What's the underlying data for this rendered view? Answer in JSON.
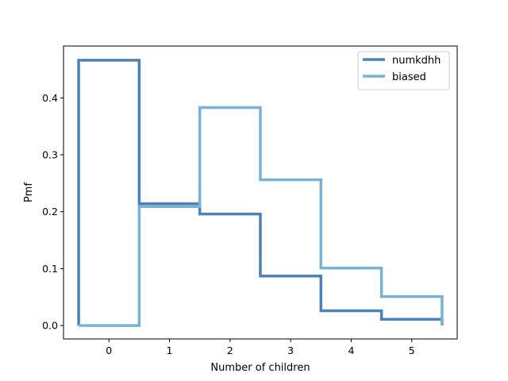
{
  "chart_data": {
    "type": "line",
    "step": "mid",
    "xlabel": "Number of children",
    "ylabel": "Pmf",
    "xlim": [
      -0.75,
      5.75
    ],
    "ylim": [
      -0.0235,
      0.491
    ],
    "xticks": [
      0,
      1,
      2,
      3,
      4,
      5
    ],
    "yticks": [
      0.0,
      0.1,
      0.2,
      0.3,
      0.4
    ],
    "ytick_labels": [
      "0.0",
      "0.1",
      "0.2",
      "0.3",
      "0.4"
    ],
    "legend_position": "top-right",
    "grid": false,
    "x": [
      0,
      1,
      2,
      3,
      4,
      5
    ],
    "series": [
      {
        "name": "numkdhh",
        "color": "#4c81b9",
        "values": [
          0.466,
          0.214,
          0.196,
          0.087,
          0.026,
          0.011
        ]
      },
      {
        "name": "biased",
        "color": "#78b3d6",
        "values": [
          0.0,
          0.209,
          0.383,
          0.256,
          0.101,
          0.051
        ]
      }
    ]
  }
}
